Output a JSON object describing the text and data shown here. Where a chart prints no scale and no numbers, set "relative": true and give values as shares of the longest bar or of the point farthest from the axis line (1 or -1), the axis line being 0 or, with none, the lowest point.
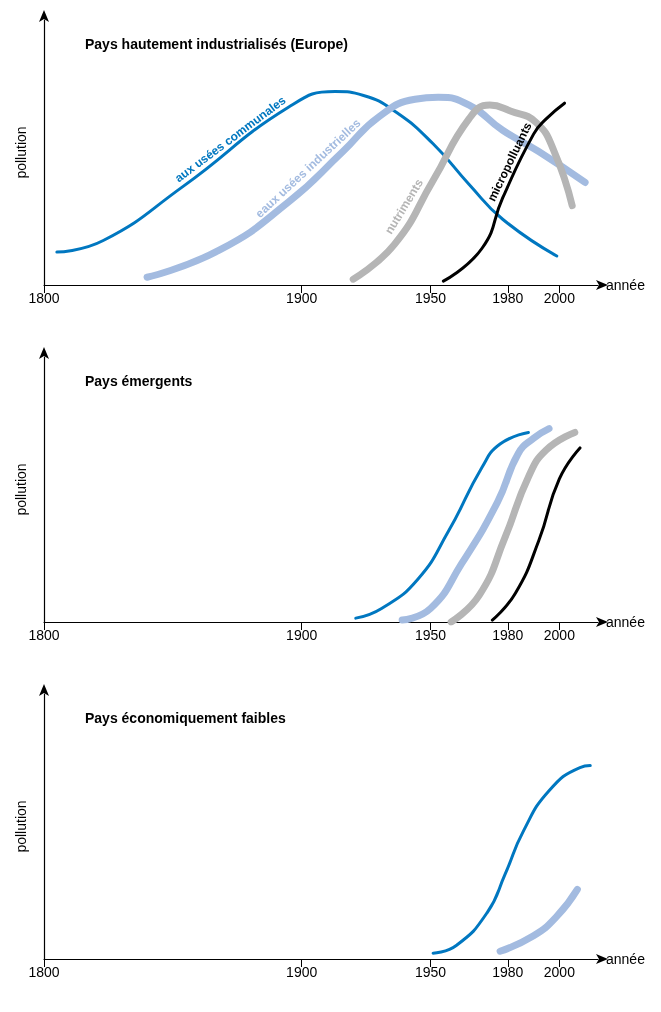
{
  "chart_data": [
    {
      "type": "line",
      "title": "Pays hautement industrialisés (Europe)",
      "xlabel": "année",
      "ylabel": "pollution",
      "relative": true,
      "tick_labels": "x",
      "xlim": [
        1800,
        2015
      ],
      "xticks": [
        1800,
        1900,
        1950,
        1980,
        2000
      ],
      "series": [
        {
          "name": "aux usées communales",
          "color": "#0077c0",
          "x": [
            1805,
            1823,
            1854,
            1895,
            1913,
            1924,
            1937,
            1951,
            1965,
            1978,
            1999
          ],
          "values": [
            0.17,
            0.23,
            0.51,
            0.92,
            1.0,
            0.98,
            0.89,
            0.73,
            0.52,
            0.34,
            0.15
          ]
        },
        {
          "name": "eaux usées industrielles",
          "color": "#a3bbe0",
          "x": [
            1840,
            1868,
            1895,
            1916,
            1930,
            1944,
            1953,
            1965,
            1978,
            1992,
            2010
          ],
          "values": [
            0.04,
            0.18,
            0.43,
            0.69,
            0.87,
            0.96,
            0.97,
            0.93,
            0.8,
            0.69,
            0.53
          ]
        },
        {
          "name": "nutriments",
          "color": "#b5b5b5",
          "x": [
            1920,
            1936,
            1951,
            1965,
            1973,
            1981,
            1991,
            1998,
            2005
          ],
          "values": [
            0.03,
            0.21,
            0.54,
            0.86,
            0.93,
            0.9,
            0.84,
            0.69,
            0.41
          ]
        },
        {
          "name": "micropolluants",
          "color": "#000000",
          "x": [
            1955,
            1970,
            1978,
            1990,
            1995,
            2002
          ],
          "values": [
            0.02,
            0.19,
            0.45,
            0.78,
            0.86,
            0.94
          ]
        }
      ]
    },
    {
      "type": "line",
      "title": "Pays émergents",
      "xlabel": "année",
      "ylabel": "pollution",
      "relative": true,
      "tick_labels": "x",
      "xlim": [
        1800,
        2015
      ],
      "xticks": [
        1800,
        1900,
        1950,
        1980,
        2000
      ],
      "series": [
        {
          "color": "#0077c0",
          "x": [
            1921,
            1931,
            1945,
            1957,
            1970,
            1977,
            1988
          ],
          "values": [
            0.02,
            0.07,
            0.22,
            0.47,
            0.8,
            0.92,
            0.98
          ]
        },
        {
          "color": "#a3bbe0",
          "x": [
            1939,
            1950,
            1962,
            1976,
            1984,
            1990,
            1996
          ],
          "values": [
            0.01,
            0.07,
            0.3,
            0.62,
            0.87,
            0.95,
            1.0
          ]
        },
        {
          "color": "#b5b5b5",
          "x": [
            1958,
            1969,
            1979,
            1988,
            1995,
            2006
          ],
          "values": [
            0.0,
            0.14,
            0.44,
            0.75,
            0.89,
            0.98
          ]
        },
        {
          "color": "#000000",
          "x": [
            1974,
            1983,
            1992,
            2000,
            2008
          ],
          "values": [
            0.01,
            0.15,
            0.42,
            0.74,
            0.9
          ]
        }
      ]
    },
    {
      "type": "line",
      "title": "Pays économiquement faibles",
      "xlabel": "année",
      "ylabel": "pollution",
      "relative": true,
      "tick_labels": "x",
      "xlim": [
        1800,
        2015
      ],
      "xticks": [
        1800,
        1900,
        1950,
        1980,
        2000
      ],
      "series": [
        {
          "color": "#0077c0",
          "x": [
            1951,
            1960,
            1972,
            1979,
            1986,
            1996,
            2008,
            2012
          ],
          "values": [
            0.03,
            0.07,
            0.24,
            0.44,
            0.66,
            0.87,
            0.99,
            1.0
          ]
        },
        {
          "color": "#a3bbe0",
          "x": [
            1977,
            1990,
            1999,
            2007
          ],
          "values": [
            0.04,
            0.12,
            0.22,
            0.36
          ]
        }
      ]
    }
  ]
}
